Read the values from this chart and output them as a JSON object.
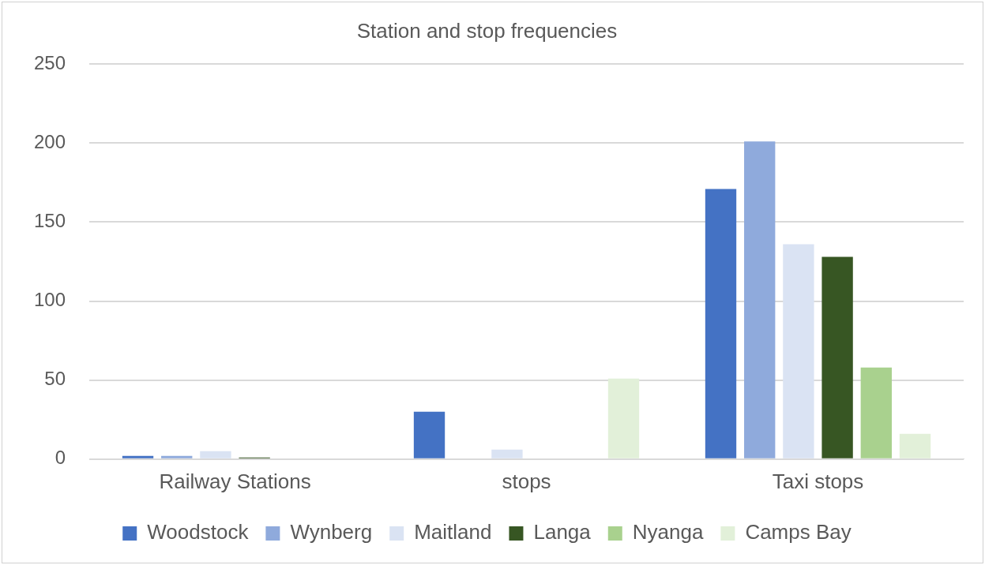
{
  "chart_data": {
    "type": "bar",
    "title": "Station and stop frequencies",
    "categories": [
      "Railway Stations",
      "stops",
      "Taxi stops"
    ],
    "series": [
      {
        "name": "Woodstock",
        "color": "#4472c4",
        "values": [
          2,
          30,
          171
        ]
      },
      {
        "name": "Wynberg",
        "color": "#8faadc",
        "values": [
          2,
          0,
          201
        ]
      },
      {
        "name": "Maitland",
        "color": "#dae3f3",
        "values": [
          5,
          6,
          136
        ]
      },
      {
        "name": "Langa",
        "color": "#375623",
        "values": [
          1,
          0,
          128
        ]
      },
      {
        "name": "Nyanga",
        "color": "#a9d18e",
        "values": [
          0,
          0,
          58
        ]
      },
      {
        "name": "Camps Bay",
        "color": "#e2f0d9",
        "values": [
          0,
          51,
          16
        ]
      }
    ],
    "ylim": [
      0,
      250
    ],
    "yticks": [
      0,
      50,
      100,
      150,
      200,
      250
    ],
    "grid": "y",
    "legend": "bottom"
  }
}
